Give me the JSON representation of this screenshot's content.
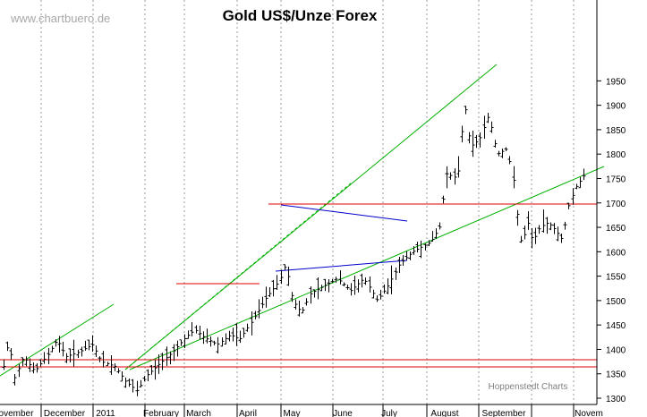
{
  "chart_data": {
    "type": "ohlc",
    "title": "Gold US$/Unze Forex",
    "watermark": "www.chartbuero.de",
    "credit": "Hoppenstedt Charts",
    "xlabel": "",
    "ylabel": "",
    "ylim": [
      1280,
      1980
    ],
    "yticks": [
      1300,
      1350,
      1400,
      1450,
      1500,
      1550,
      1600,
      1650,
      1700,
      1750,
      1800,
      1850,
      1900,
      1950
    ],
    "month_labels": [
      "ovember",
      "December",
      "2011",
      "February",
      "March",
      "April",
      "May",
      "June",
      "July",
      "August",
      "September",
      "Novem"
    ],
    "grid": "vertical dotted lines at month boundaries",
    "colors": {
      "bars": "#000000",
      "trendlines": "#00b000",
      "support_resistance": "#e00000",
      "triangle": "#0000cc"
    },
    "price_path": [
      [
        0,
        1365
      ],
      [
        6,
        1420
      ],
      [
        12,
        1340
      ],
      [
        22,
        1385
      ],
      [
        35,
        1355
      ],
      [
        50,
        1390
      ],
      [
        60,
        1420
      ],
      [
        70,
        1385
      ],
      [
        85,
        1395
      ],
      [
        100,
        1410
      ],
      [
        110,
        1375
      ],
      [
        125,
        1365
      ],
      [
        137,
        1335
      ],
      [
        150,
        1315
      ],
      [
        160,
        1345
      ],
      [
        175,
        1370
      ],
      [
        190,
        1395
      ],
      [
        205,
        1425
      ],
      [
        215,
        1440
      ],
      [
        225,
        1425
      ],
      [
        240,
        1410
      ],
      [
        255,
        1430
      ],
      [
        265,
        1420
      ],
      [
        280,
        1460
      ],
      [
        295,
        1505
      ],
      [
        310,
        1540
      ],
      [
        317,
        1575
      ],
      [
        325,
        1500
      ],
      [
        335,
        1475
      ],
      [
        345,
        1515
      ],
      [
        360,
        1530
      ],
      [
        375,
        1545
      ],
      [
        390,
        1520
      ],
      [
        405,
        1545
      ],
      [
        412,
        1525
      ],
      [
        420,
        1500
      ],
      [
        432,
        1530
      ],
      [
        445,
        1575
      ],
      [
        460,
        1600
      ],
      [
        480,
        1620
      ],
      [
        490,
        1650
      ],
      [
        498,
        1760
      ],
      [
        510,
        1750
      ],
      [
        518,
        1905
      ],
      [
        525,
        1815
      ],
      [
        535,
        1830
      ],
      [
        545,
        1880
      ],
      [
        555,
        1800
      ],
      [
        565,
        1810
      ],
      [
        572,
        1765
      ],
      [
        577,
        1680
      ],
      [
        582,
        1615
      ],
      [
        590,
        1660
      ],
      [
        595,
        1620
      ],
      [
        603,
        1650
      ],
      [
        612,
        1660
      ],
      [
        620,
        1645
      ],
      [
        628,
        1625
      ],
      [
        636,
        1700
      ],
      [
        644,
        1735
      ],
      [
        652,
        1755
      ]
    ],
    "bar_count": 158,
    "x_domain": [
      0,
      652
    ]
  }
}
